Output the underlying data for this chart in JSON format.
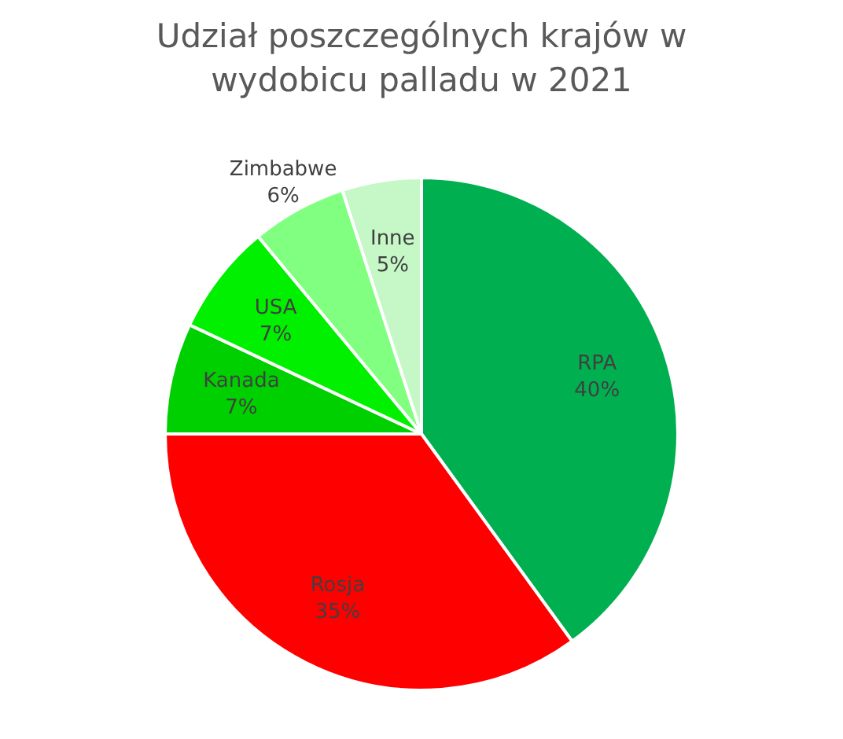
{
  "chart_data": {
    "type": "pie",
    "title": "Udział poszczególnych krajów w wydobicu palladu w 2021",
    "categories": [
      "RPA",
      "Rosja",
      "Kanada",
      "USA",
      "Zimbabwe",
      "Inne"
    ],
    "values": [
      40,
      35,
      7,
      7,
      6,
      5
    ],
    "value_labels": [
      "40%",
      "35%",
      "7%",
      "7%",
      "6%",
      "5%"
    ],
    "colors": [
      "#00b050",
      "#ff0000",
      "#00d000",
      "#00f000",
      "#80ff80",
      "#c6f7c6"
    ],
    "legend": false
  }
}
